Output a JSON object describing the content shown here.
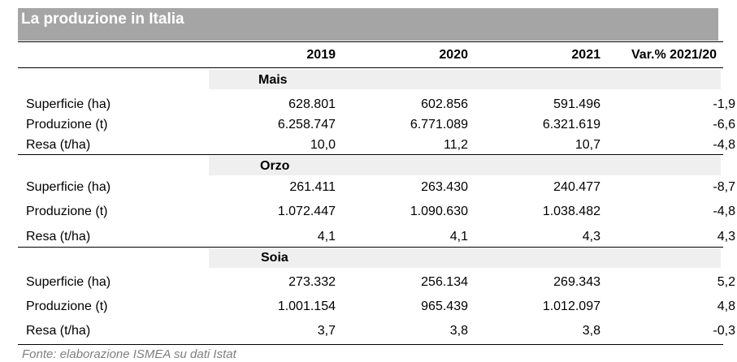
{
  "title": "La produzione in Italia",
  "columns": [
    "2019",
    "2020",
    "2021",
    "Var.% 2021/20"
  ],
  "groups": [
    {
      "name": "Mais",
      "rows": [
        {
          "label": "Superficie (ha)",
          "v2019": "628.801",
          "v2020": "602.856",
          "v2021": "591.496",
          "var": "-1,9"
        },
        {
          "label": "Produzione (t)",
          "v2019": "6.258.747",
          "v2020": "6.771.089",
          "v2021": "6.321.619",
          "var": "-6,6"
        },
        {
          "label": "Resa (t/ha)",
          "v2019": "10,0",
          "v2020": "11,2",
          "v2021": "10,7",
          "var": "-4,8"
        }
      ]
    },
    {
      "name": "Orzo",
      "rows": [
        {
          "label": "Superficie (ha)",
          "v2019": "261.411",
          "v2020": "263.430",
          "v2021": "240.477",
          "var": "-8,7"
        },
        {
          "label": "Produzione (t)",
          "v2019": "1.072.447",
          "v2020": "1.090.630",
          "v2021": "1.038.482",
          "var": "-4,8"
        },
        {
          "label": "Resa (t/ha)",
          "v2019": "4,1",
          "v2020": "4,1",
          "v2021": "4,3",
          "var": "4,3"
        }
      ]
    },
    {
      "name": "Soia",
      "rows": [
        {
          "label": "Superficie (ha)",
          "v2019": "273.332",
          "v2020": "256.134",
          "v2021": "269.343",
          "var": "5,2"
        },
        {
          "label": "Produzione (t)",
          "v2019": "1.001.154",
          "v2020": "965.439",
          "v2021": "1.012.097",
          "var": "4,8"
        },
        {
          "label": "Resa (t/ha)",
          "v2019": "3,7",
          "v2020": "3,8",
          "v2021": "3,8",
          "var": "-0,3"
        }
      ]
    }
  ],
  "footnote": "Fonte: elaborazione ISMEA su dati Istat",
  "colors": {
    "title_bar": "#a5a5a5",
    "band": "#efefef",
    "footnote": "#7f7f7f"
  }
}
